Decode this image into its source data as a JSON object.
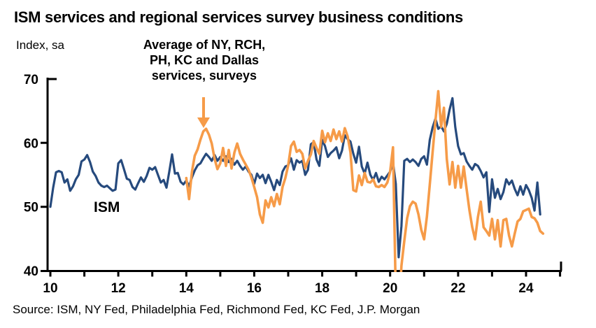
{
  "title": "ISM services and regional services survey business conditions",
  "y_axis_unit": "Index, sa",
  "annotation": {
    "line1": "Average of NY, RCH,",
    "line2": "PH, KC and Dallas",
    "line3": "services, surveys"
  },
  "ism_label": "ISM",
  "source": "Source: ISM, NY Fed, Philadelphia Fed, Richmond Fed, KC Fed, J.P. Morgan",
  "colors": {
    "ism_line": "#264A7D",
    "regional_line": "#F69B48",
    "axis": "#000000"
  },
  "chart_data": {
    "type": "line",
    "title": "ISM services and regional services survey business conditions",
    "xlabel": "",
    "ylabel": "Index, sa",
    "ylim": [
      40,
      70
    ],
    "yticks": [
      70,
      60,
      50,
      40
    ],
    "xticks": [
      10,
      12,
      14,
      16,
      18,
      20,
      22,
      24
    ],
    "xlim": [
      9.9,
      25.05
    ],
    "grid": false,
    "legend_position": "none (in-chart labels)",
    "frequency": "monthly",
    "series": [
      {
        "name": "ISM",
        "color_key": "ism_line",
        "start_year": 2010,
        "values": [
          50.0,
          53.0,
          55.4,
          55.6,
          55.4,
          53.8,
          54.3,
          52.5,
          53.2,
          54.3,
          55.0,
          57.1,
          57.4,
          58.1,
          57.0,
          55.5,
          54.8,
          53.8,
          53.3,
          53.1,
          53.3,
          52.9,
          52.5,
          52.7,
          56.8,
          57.3,
          55.9,
          54.4,
          54.2,
          53.1,
          52.7,
          53.7,
          54.6,
          53.9,
          54.8,
          56.1,
          55.8,
          56.2,
          55.0,
          53.8,
          54.2,
          53.0,
          55.5,
          58.2,
          55.2,
          55.3,
          53.9,
          53.5,
          54.1,
          53.2,
          54.6,
          55.7,
          56.5,
          56.8,
          57.6,
          58.3,
          57.8,
          57.2,
          58.1,
          57.2,
          57.8,
          57.2,
          57.9,
          57.0,
          57.5,
          56.6,
          57.2,
          56.4,
          55.8,
          56.3,
          55.5,
          55.0,
          53.6,
          55.2,
          54.5,
          55.0,
          53.7,
          55.0,
          53.9,
          52.6,
          54.2,
          53.4,
          55.5,
          56.3,
          56.5,
          57.6,
          55.8,
          57.3,
          56.9,
          57.2,
          55.0,
          55.8,
          59.8,
          60.1,
          57.4,
          56.4,
          60.5,
          59.5,
          57.8,
          58.4,
          58.8,
          59.3,
          57.6,
          58.8,
          61.2,
          60.6,
          60.2,
          58.3,
          56.9,
          59.4,
          56.3,
          55.2,
          56.9,
          55.0,
          54.2,
          55.3,
          53.9,
          54.7,
          54.3,
          54.9,
          55.5,
          56.9,
          53.6,
          42.1,
          47.0,
          57.2,
          57.5,
          57.0,
          57.4,
          57.0,
          56.4,
          57.5,
          57.9,
          56.6,
          60.5,
          62.4,
          63.8,
          62.2,
          62.6,
          61.8,
          63.0,
          65.2,
          67.0,
          62.5,
          59.5,
          58.2,
          58.4,
          57.1,
          56.4,
          55.8,
          56.7,
          56.4,
          55.6,
          54.6,
          55.4,
          49.2,
          54.3,
          51.4,
          52.8,
          51.2,
          52.3,
          54.3,
          53.5,
          54.1,
          52.8,
          51.8,
          53.2,
          51.9,
          53.4,
          52.6,
          51.4,
          49.4,
          53.8,
          48.8
        ]
      },
      {
        "name": "Average of NY, RCH, PH, KC and Dallas services, surveys",
        "color_key": "regional_line",
        "start_year": 2014,
        "values": [
          54.5,
          51.2,
          55.5,
          58.0,
          59.0,
          60.5,
          61.8,
          62.2,
          61.3,
          59.9,
          57.5,
          55.9,
          56.8,
          59.2,
          56.4,
          58.9,
          56.0,
          58.5,
          59.9,
          58.3,
          57.4,
          56.6,
          55.8,
          54.6,
          53.1,
          51.5,
          48.8,
          47.5,
          51.0,
          49.9,
          51.5,
          50.1,
          52.0,
          50.4,
          53.1,
          54.5,
          56.5,
          59.5,
          60.2,
          58.6,
          58.9,
          58.3,
          56.0,
          57.2,
          58.2,
          60.3,
          59.2,
          58.3,
          61.9,
          60.1,
          61.5,
          60.3,
          62.1,
          60.6,
          61.8,
          60.2,
          62.3,
          61.0,
          58.5,
          52.6,
          52.4,
          54.9,
          53.4,
          55.3,
          53.9,
          53.8,
          54.3,
          53.2,
          53.1,
          53.4,
          53.1,
          53.8,
          55.5,
          59.3,
          36.0,
          33.0,
          40.8,
          44.6,
          48.2,
          50.1,
          50.8,
          50.5,
          48.8,
          46.4,
          44.9,
          48.5,
          53.5,
          58.5,
          63.5,
          68.1,
          62.5,
          65.5,
          57.5,
          53.5,
          57.0,
          53.0,
          56.4,
          53.0,
          56.3,
          52.8,
          49.5,
          46.8,
          44.9,
          48.4,
          50.8,
          46.8,
          46.2,
          45.5,
          48.1,
          44.9,
          47.9,
          43.8,
          47.9,
          48.1,
          45.5,
          43.8,
          45.8,
          47.7,
          48.1,
          49.3,
          49.5,
          49.7,
          48.4,
          48.2,
          47.5,
          46.2,
          45.8
        ]
      }
    ]
  }
}
